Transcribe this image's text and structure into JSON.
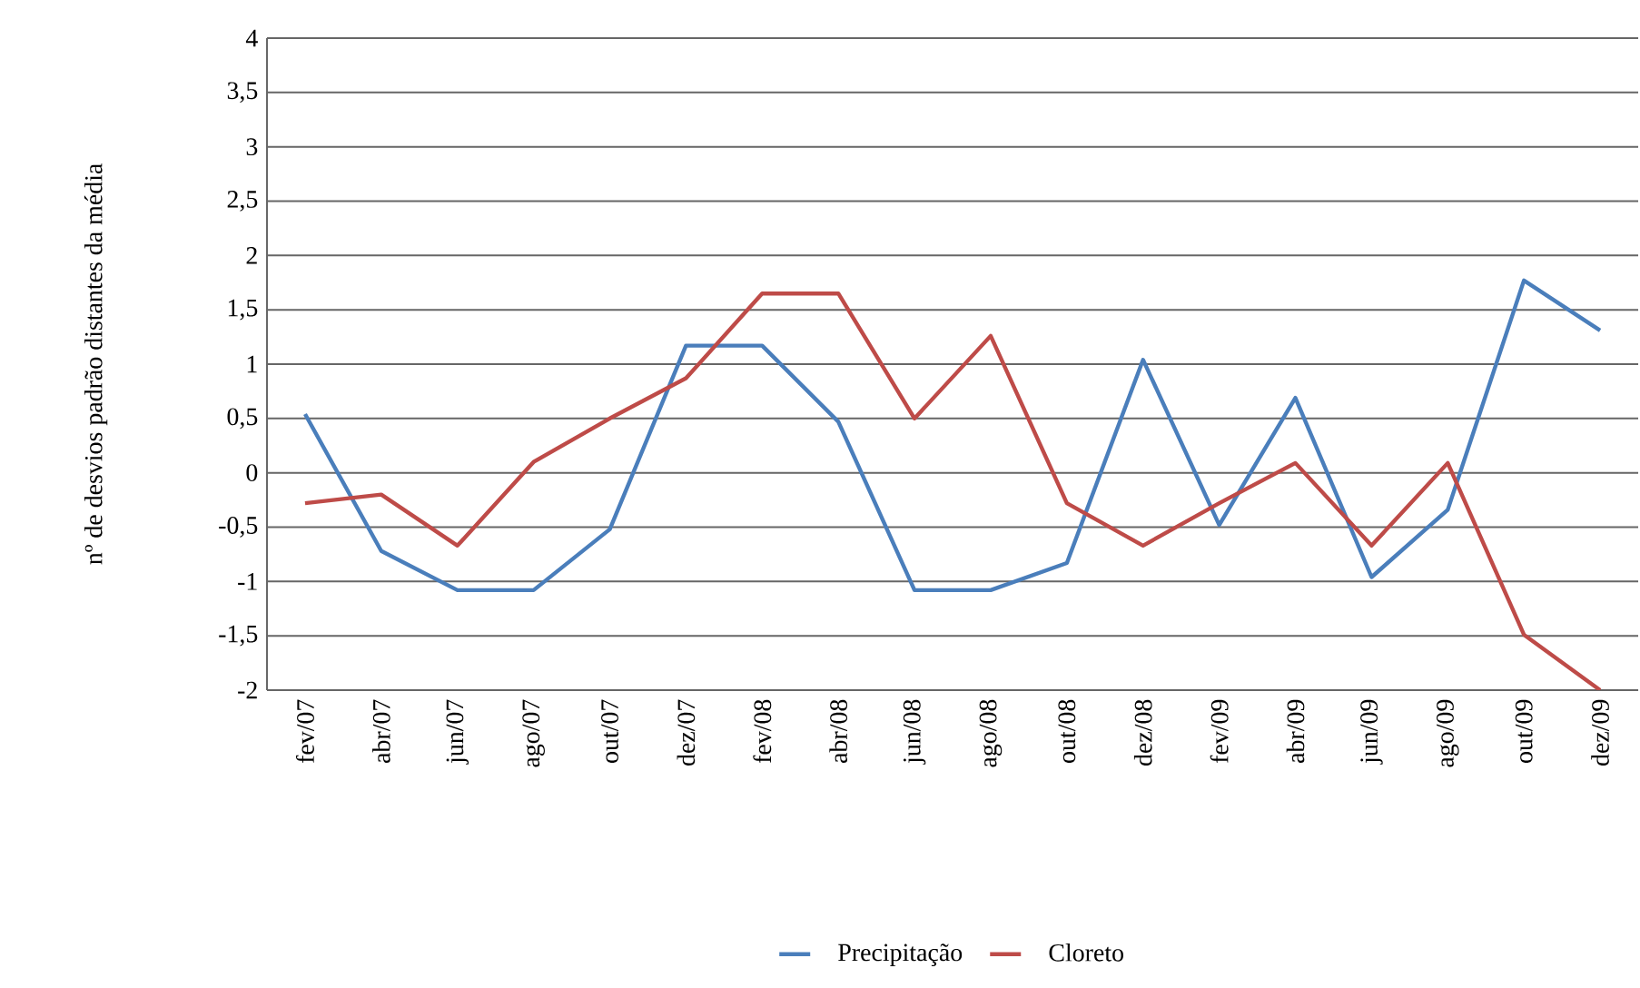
{
  "chart_data": {
    "type": "line",
    "ylabel": "nº de desvios padrão distantes da média",
    "categories": [
      "fev/07",
      "abr/07",
      "jun/07",
      "ago/07",
      "out/07",
      "dez/07",
      "fev/08",
      "abr/08",
      "jun/08",
      "ago/08",
      "out/08",
      "dez/08",
      "fev/09",
      "abr/09",
      "jun/09",
      "ago/09",
      "out/09",
      "dez/09"
    ],
    "series": [
      {
        "name": "Precipitação",
        "color": "#4a7ebb",
        "values": [
          0.54,
          -0.72,
          -1.08,
          -1.08,
          -0.52,
          1.17,
          1.17,
          0.47,
          -1.08,
          -1.08,
          -0.83,
          1.04,
          -0.48,
          0.69,
          -0.96,
          -0.34,
          1.77,
          1.31
        ]
      },
      {
        "name": "Cloreto",
        "color": "#be4b48",
        "values": [
          -0.28,
          -0.2,
          -0.67,
          0.1,
          0.5,
          0.87,
          1.65,
          1.65,
          0.5,
          1.26,
          -0.28,
          -0.67,
          -0.28,
          0.09,
          -0.67,
          0.09,
          -1.49,
          -2.0
        ]
      }
    ],
    "ylim": [
      -2,
      4
    ],
    "yticks": [
      -2,
      {
        "value": -1.5,
        "label": "-1,5"
      },
      -1,
      {
        "value": -0.5,
        "label": "-0,5"
      },
      0,
      {
        "value": 0.5,
        "label": "0,5"
      },
      1,
      {
        "value": 1.5,
        "label": "1,5"
      },
      2,
      {
        "value": 2.5,
        "label": "2,5"
      },
      3,
      {
        "value": 3.5,
        "label": "3,5"
      },
      4
    ],
    "grid": "y",
    "legend": "bottom",
    "line_style": "solid",
    "marker": "none"
  }
}
